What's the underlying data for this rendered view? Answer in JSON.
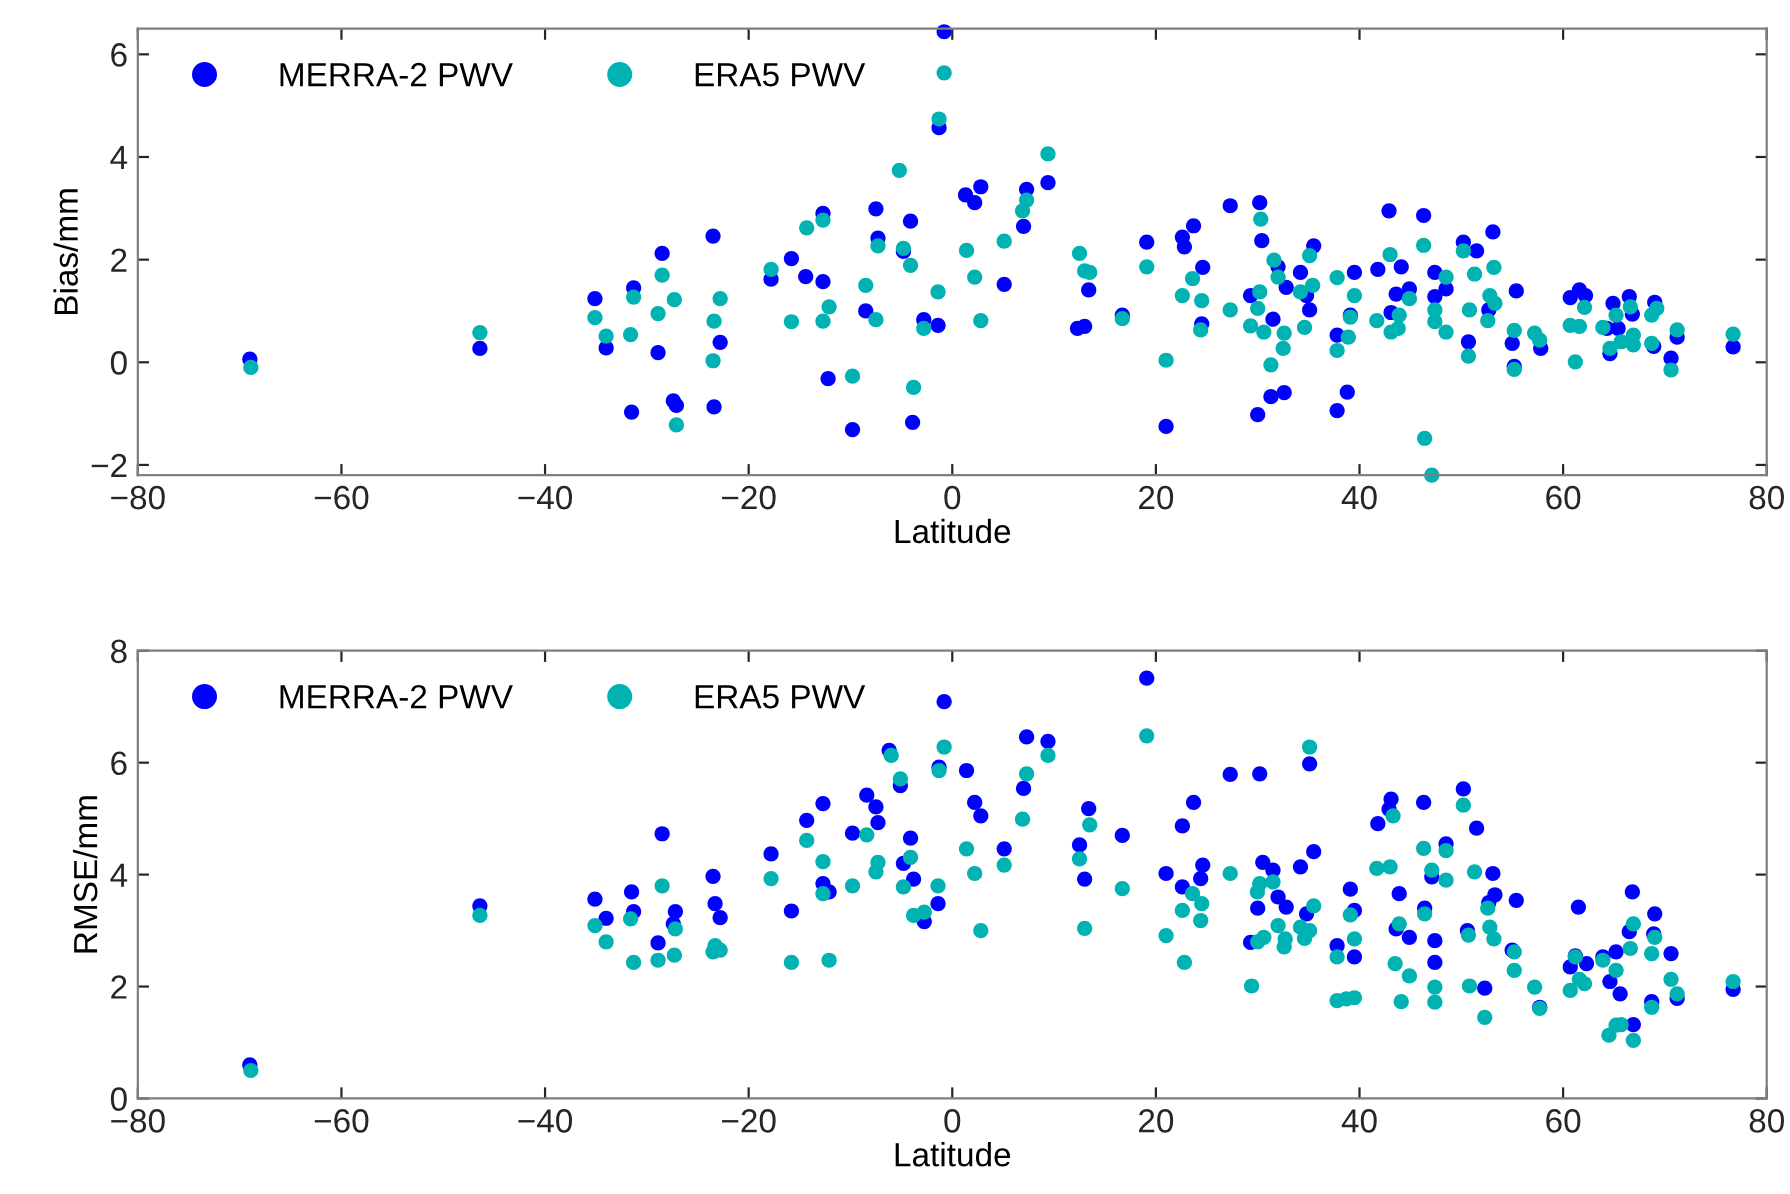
{
  "chart_data": [
    {
      "type": "scatter",
      "xlabel": "Latitude",
      "ylabel": "Bias/mm",
      "xlim": [
        -80,
        80
      ],
      "xticks": [
        -80,
        -60,
        -40,
        -20,
        0,
        20,
        40,
        60,
        80
      ],
      "ylim": [
        -2.2,
        6.5
      ],
      "yticks": [
        -2,
        0,
        2,
        4,
        6
      ],
      "grid": false,
      "legend": "top left",
      "marker": "circle",
      "series": [
        {
          "name": "MERRA-2 PWV",
          "color": "#0000ff",
          "x": [
            -69.0,
            -46.4,
            -35.1,
            -34.0,
            -31.3,
            -31.5,
            -28.5,
            -28.9,
            -27.4,
            -27.1,
            -23.5,
            -23.4,
            -22.8,
            -17.8,
            -15.8,
            -14.4,
            -12.7,
            -12.7,
            -12.2,
            -9.8,
            -8.5,
            -7.5,
            -7.3,
            -4.8,
            -4.1,
            -3.9,
            -0.8,
            -1.3,
            -2.8,
            -1.4,
            1.3,
            2.2,
            2.8,
            5.1,
            7.0,
            7.3,
            9.4,
            12.3,
            13.0,
            13.4,
            16.7,
            19.1,
            21.0,
            22.6,
            22.8,
            23.7,
            24.6,
            24.5,
            27.3,
            30.2,
            30.4,
            29.3,
            30.0,
            31.5,
            31.3,
            32.0,
            32.6,
            32.8,
            34.2,
            35.1,
            35.5,
            34.8,
            37.8,
            37.8,
            38.8,
            39.1,
            39.5,
            41.8,
            42.9,
            43.1,
            43.6,
            44.1,
            44.9,
            46.3,
            47.4,
            47.4,
            48.5,
            50.2,
            51.5,
            50.7,
            53.1,
            52.7,
            55.0,
            55.2,
            55.4,
            57.8,
            60.7,
            61.6,
            62.2,
            64.6,
            64.3,
            64.9,
            65.4,
            66.5,
            66.8,
            69.0,
            68.9,
            70.6,
            71.2,
            76.7
          ],
          "values": [
            0.06,
            0.27,
            1.24,
            0.28,
            1.45,
            -0.97,
            2.12,
            0.19,
            -0.75,
            -0.84,
            2.46,
            -0.87,
            0.39,
            1.62,
            2.02,
            1.67,
            2.9,
            1.57,
            -0.32,
            -1.31,
            1.0,
            2.99,
            2.42,
            2.16,
            2.75,
            -1.17,
            6.44,
            4.57,
            0.83,
            0.72,
            3.26,
            3.11,
            3.42,
            1.52,
            2.65,
            3.37,
            3.5,
            0.66,
            0.7,
            1.41,
            0.92,
            2.34,
            -1.25,
            2.44,
            2.25,
            2.66,
            1.85,
            0.75,
            3.05,
            3.11,
            2.37,
            1.3,
            -1.02,
            0.84,
            -0.67,
            1.86,
            -0.59,
            1.46,
            1.75,
            1.02,
            2.27,
            1.3,
            0.53,
            -0.94,
            -0.58,
            0.92,
            1.75,
            1.81,
            2.95,
            0.97,
            1.33,
            1.86,
            1.43,
            2.86,
            1.75,
            1.28,
            1.43,
            2.34,
            2.17,
            0.4,
            2.54,
            1.02,
            0.37,
            -0.08,
            1.39,
            0.27,
            1.26,
            1.41,
            1.3,
            0.17,
            0.66,
            1.15,
            0.66,
            1.28,
            0.94,
            1.17,
            0.31,
            0.08,
            0.49,
            0.3
          ]
        },
        {
          "name": "ERA5 PWV",
          "color": "#00b2b2",
          "x": [
            -68.9,
            -46.4,
            -35.1,
            -34.0,
            -31.3,
            -31.6,
            -28.5,
            -28.9,
            -27.3,
            -27.1,
            -22.8,
            -23.4,
            -23.5,
            -17.8,
            -15.8,
            -14.3,
            -12.7,
            -12.7,
            -12.1,
            -9.8,
            -8.5,
            -7.5,
            -7.3,
            -5.2,
            -4.8,
            -4.1,
            -3.8,
            -2.8,
            -1.4,
            -1.3,
            -0.8,
            1.4,
            2.2,
            2.8,
            5.1,
            6.9,
            7.3,
            9.4,
            12.5,
            13.0,
            13.5,
            16.7,
            19.1,
            21.0,
            22.6,
            23.6,
            24.5,
            24.4,
            27.3,
            29.3,
            30.0,
            30.3,
            30.2,
            30.6,
            31.3,
            31.6,
            32.0,
            32.6,
            32.5,
            34.6,
            34.2,
            35.1,
            35.4,
            37.8,
            37.8,
            38.9,
            39.1,
            39.5,
            41.7,
            43.0,
            43.1,
            43.9,
            43.8,
            44.9,
            46.3,
            46.4,
            47.1,
            47.4,
            47.4,
            48.5,
            48.5,
            50.2,
            50.7,
            50.8,
            51.3,
            52.6,
            52.8,
            53.2,
            53.3,
            55.2,
            55.2,
            57.2,
            57.7,
            60.7,
            61.2,
            61.6,
            62.1,
            63.9,
            64.6,
            65.2,
            65.7,
            66.6,
            66.9,
            66.9,
            68.7,
            68.7,
            69.2,
            70.6,
            71.2,
            76.7
          ],
          "values": [
            -0.1,
            0.58,
            0.87,
            0.51,
            1.27,
            0.54,
            1.7,
            0.95,
            1.22,
            -1.22,
            1.24,
            0.8,
            0.03,
            1.81,
            0.79,
            2.62,
            2.77,
            0.8,
            1.08,
            -0.27,
            1.5,
            0.83,
            2.27,
            3.74,
            2.22,
            1.89,
            -0.49,
            0.66,
            1.37,
            4.74,
            5.64,
            2.18,
            1.66,
            0.81,
            2.36,
            2.95,
            3.16,
            4.06,
            2.12,
            1.78,
            1.75,
            0.85,
            1.86,
            0.04,
            1.3,
            1.63,
            1.2,
            0.63,
            1.02,
            0.71,
            1.05,
            2.79,
            1.37,
            0.59,
            -0.05,
            1.99,
            1.66,
            0.57,
            0.27,
            0.68,
            1.37,
            2.08,
            1.5,
            1.65,
            0.23,
            0.49,
            0.88,
            1.3,
            0.81,
            2.1,
            0.59,
            0.92,
            0.66,
            1.24,
            2.28,
            -1.48,
            -2.2,
            1.02,
            0.79,
            1.66,
            0.59,
            2.17,
            0.12,
            1.02,
            1.72,
            0.81,
            1.3,
            1.85,
            1.15,
            0.62,
            -0.14,
            0.57,
            0.43,
            0.72,
            0.01,
            0.7,
            1.07,
            0.68,
            0.27,
            0.92,
            0.4,
            1.08,
            0.53,
            0.34,
            0.92,
            0.37,
            1.05,
            -0.15,
            0.63,
            0.55
          ]
        }
      ]
    },
    {
      "type": "scatter",
      "xlabel": "Latitude",
      "ylabel": "RMSE/mm",
      "xlim": [
        -80,
        80
      ],
      "xticks": [
        -80,
        -60,
        -40,
        -20,
        0,
        20,
        40,
        60,
        80
      ],
      "ylim": [
        0,
        8
      ],
      "yticks": [
        0,
        2,
        4,
        6,
        8
      ],
      "grid": false,
      "legend": "top left",
      "marker": "circle",
      "series": [
        {
          "name": "MERRA-2 PWV",
          "color": "#0000ff",
          "x": [
            -69.0,
            -46.4,
            -35.1,
            -34.0,
            -31.5,
            -31.3,
            -28.5,
            -28.9,
            -27.2,
            -27.4,
            -23.5,
            -23.3,
            -22.8,
            -17.8,
            -15.8,
            -14.3,
            -12.7,
            -12.7,
            -12.1,
            -9.8,
            -8.4,
            -7.5,
            -7.3,
            -6.2,
            -5.1,
            -4.1,
            -4.8,
            -3.8,
            -2.75,
            -1.4,
            -1.3,
            -0.8,
            1.4,
            2.2,
            2.8,
            5.1,
            7.0,
            7.3,
            9.4,
            12.5,
            13.0,
            13.4,
            16.7,
            19.1,
            21.0,
            22.6,
            23.7,
            24.6,
            24.4,
            22.6,
            27.3,
            30.2,
            30.5,
            30.0,
            29.3,
            31.5,
            32.0,
            32.8,
            34.2,
            35.1,
            35.5,
            34.8,
            37.8,
            39.1,
            39.5,
            39.5,
            41.8,
            43.1,
            42.9,
            43.9,
            43.6,
            44.9,
            46.3,
            46.4,
            47.1,
            47.4,
            47.4,
            48.5,
            50.2,
            51.5,
            50.6,
            52.3,
            53.1,
            53.3,
            52.7,
            55.4,
            55.0,
            57.7,
            60.7,
            61.2,
            61.5,
            62.3,
            63.9,
            64.6,
            65.2,
            65.6,
            66.5,
            66.8,
            66.9,
            68.9,
            69.0,
            68.7,
            70.6,
            71.2,
            76.7
          ],
          "values": [
            0.6,
            3.44,
            3.56,
            3.22,
            3.69,
            3.34,
            4.73,
            2.78,
            3.34,
            3.12,
            3.97,
            3.48,
            3.23,
            4.37,
            3.35,
            4.97,
            5.27,
            3.84,
            3.69,
            4.74,
            5.42,
            5.21,
            4.93,
            6.22,
            5.59,
            4.65,
            4.2,
            3.92,
            3.16,
            3.48,
            5.92,
            7.09,
            5.86,
            5.29,
            5.05,
            4.46,
            5.54,
            6.46,
            6.38,
            4.53,
            3.92,
            5.18,
            4.7,
            7.51,
            4.02,
            4.87,
            5.29,
            4.17,
            3.93,
            3.78,
            5.79,
            5.8,
            4.22,
            3.4,
            2.79,
            4.08,
            3.6,
            3.42,
            4.14,
            5.98,
            4.41,
            3.3,
            2.73,
            3.74,
            3.36,
            2.53,
            4.91,
            5.35,
            5.17,
            3.66,
            3.03,
            2.88,
            5.29,
            3.4,
            3.96,
            2.82,
            2.43,
            4.55,
            5.53,
            4.83,
            3.0,
            1.97,
            4.02,
            3.64,
            3.5,
            3.54,
            2.65,
            1.63,
            2.35,
            2.55,
            3.42,
            2.41,
            2.53,
            2.09,
            2.62,
            1.87,
            2.98,
            3.69,
            1.32,
            2.94,
            3.3,
            1.73,
            2.59,
            1.79,
            1.95
          ]
        },
        {
          "name": "ERA5 PWV",
          "color": "#00b2b2",
          "x": [
            -68.9,
            -46.4,
            -35.1,
            -34.0,
            -31.3,
            -31.6,
            -28.5,
            -28.9,
            -27.2,
            -27.3,
            -23.5,
            -23.3,
            -22.8,
            -17.8,
            -15.8,
            -14.3,
            -12.7,
            -12.7,
            -12.1,
            -9.8,
            -8.4,
            -7.5,
            -7.3,
            -6.0,
            -5.1,
            -4.8,
            -4.1,
            -3.8,
            -2.75,
            -1.4,
            -1.3,
            -0.8,
            1.4,
            2.2,
            2.8,
            5.1,
            6.9,
            7.3,
            9.4,
            12.5,
            13.0,
            13.5,
            16.7,
            19.1,
            21.0,
            22.6,
            22.8,
            23.6,
            24.5,
            24.4,
            27.3,
            29.4,
            29.97,
            30.2,
            30.0,
            30.6,
            31.5,
            32.0,
            32.6,
            32.7,
            35.1,
            34.2,
            34.6,
            35.1,
            35.5,
            37.8,
            37.8,
            38.7,
            39.5,
            39.1,
            39.5,
            41.7,
            43.0,
            43.3,
            43.9,
            43.5,
            44.1,
            44.9,
            46.3,
            46.4,
            47.1,
            47.4,
            47.4,
            48.5,
            48.5,
            50.2,
            50.7,
            50.8,
            51.3,
            52.3,
            52.6,
            52.8,
            53.2,
            55.2,
            55.2,
            57.2,
            57.7,
            60.7,
            61.2,
            61.6,
            62.1,
            63.9,
            64.5,
            65.2,
            65.2,
            65.7,
            66.6,
            66.9,
            66.9,
            68.7,
            68.7,
            69.0,
            70.6,
            71.2,
            76.7
          ],
          "values": [
            0.5,
            3.27,
            3.09,
            2.8,
            2.43,
            3.21,
            3.8,
            2.47,
            3.03,
            2.56,
            2.62,
            2.73,
            2.65,
            3.93,
            2.43,
            4.61,
            4.23,
            3.66,
            2.47,
            3.8,
            4.71,
            4.05,
            4.22,
            6.13,
            5.71,
            3.78,
            4.31,
            3.27,
            3.33,
            3.8,
            5.86,
            6.28,
            4.46,
            4.02,
            3.0,
            4.17,
            4.99,
            5.8,
            6.13,
            4.28,
            3.04,
            4.89,
            3.75,
            6.48,
            2.91,
            3.36,
            2.43,
            3.66,
            3.48,
            3.18,
            4.02,
            2.01,
            3.69,
            3.84,
            2.8,
            2.88,
            3.87,
            3.09,
            2.71,
            2.85,
            6.28,
            3.06,
            2.86,
            3.0,
            3.44,
            2.53,
            1.75,
            1.78,
            1.8,
            3.28,
            2.85,
            4.11,
            4.14,
            5.05,
            3.12,
            2.41,
            1.73,
            2.19,
            4.47,
            3.3,
            4.08,
            1.99,
            1.72,
            4.43,
            3.9,
            5.24,
            2.92,
            2.01,
            4.05,
            1.45,
            3.4,
            3.06,
            2.85,
            2.62,
            2.29,
            1.99,
            1.61,
            1.93,
            2.53,
            2.13,
            2.05,
            2.47,
            1.13,
            2.29,
            1.31,
            1.32,
            2.68,
            3.12,
            1.04,
            2.59,
            1.63,
            2.88,
            2.13,
            1.87,
            2.09
          ]
        }
      ]
    }
  ]
}
